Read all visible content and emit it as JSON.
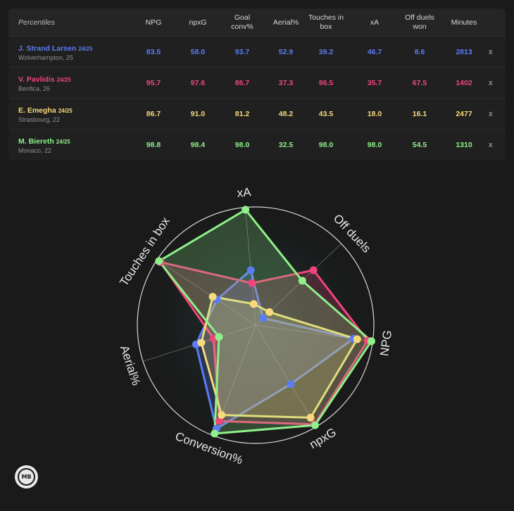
{
  "table": {
    "headers": [
      "Percentiles",
      "NPG",
      "npxG",
      "Goal\nconv%",
      "Aerial%",
      "Touches in\nbox",
      "xA",
      "Off duels\nwon",
      "Minutes"
    ],
    "close_label": "x",
    "players": [
      {
        "name": "J. Strand Larsen",
        "season": "24/25",
        "club": "Wolverhampton, 25",
        "color": "#5b7cf5",
        "values": [
          "83.5",
          "58.0",
          "93.7",
          "52.9",
          "39.2",
          "46.7",
          "8.6",
          "2813"
        ]
      },
      {
        "name": "V. Pavlidis",
        "season": "24/25",
        "club": "Benfica, 26",
        "color": "#f0457a",
        "values": [
          "95.7",
          "97.6",
          "86.7",
          "37.3",
          "96.5",
          "35.7",
          "67.5",
          "1402"
        ]
      },
      {
        "name": "E. Emegha",
        "season": "24/25",
        "club": "Strasbourg, 22",
        "color": "#f7d97a",
        "values": [
          "86.7",
          "91.0",
          "81.2",
          "48.2",
          "43.5",
          "18.0",
          "16.1",
          "2477"
        ]
      },
      {
        "name": "M. Biereth",
        "season": "24/25",
        "club": "Monaco, 22",
        "color": "#8ef08a",
        "values": [
          "98.8",
          "98.4",
          "98.0",
          "32.5",
          "98.0",
          "98.0",
          "54.5",
          "1310"
        ]
      }
    ]
  },
  "chart_data": {
    "type": "radar",
    "axes": [
      "xA",
      "Off duels",
      "NPG",
      "npxG",
      "Conversion%",
      "Aerial%",
      "Touches in box"
    ],
    "range": [
      0,
      100
    ],
    "series": [
      {
        "name": "J. Strand Larsen",
        "color": "#5b7cf5",
        "values": [
          46.7,
          8.6,
          83.5,
          58.0,
          93.7,
          52.9,
          39.2
        ]
      },
      {
        "name": "V. Pavlidis",
        "color": "#f0457a",
        "values": [
          35.7,
          67.5,
          95.7,
          97.6,
          86.7,
          37.3,
          96.5
        ]
      },
      {
        "name": "E. Emegha",
        "color": "#f7d97a",
        "values": [
          18.0,
          16.1,
          86.7,
          91.0,
          81.2,
          48.2,
          43.5
        ]
      },
      {
        "name": "M. Biereth",
        "color": "#8ef08a",
        "values": [
          98.0,
          54.5,
          98.8,
          98.4,
          98.0,
          32.5,
          98.0
        ]
      }
    ]
  },
  "logo": {
    "text": "MB"
  }
}
